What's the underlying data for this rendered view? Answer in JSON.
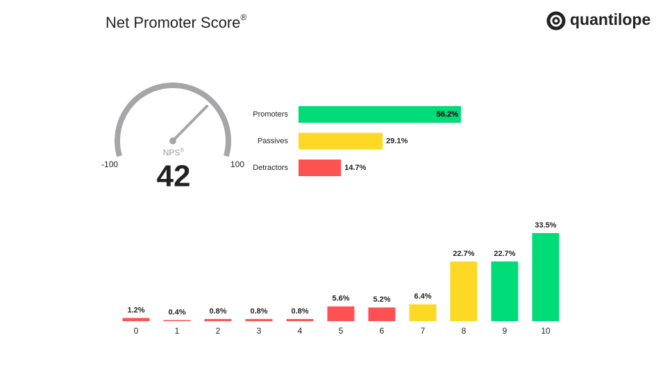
{
  "header": {
    "title": "Net Promoter Score",
    "title_mark": "®",
    "brand": "quantilope"
  },
  "chart_data": [
    {
      "type": "gauge",
      "label": "NPS",
      "label_mark": "®",
      "value": 42,
      "ylim": [
        -100,
        100
      ],
      "yticks": [
        -100,
        100
      ],
      "color": "#a6a6a8"
    },
    {
      "type": "hbar",
      "categories": [
        "Promoters",
        "Passives",
        "Detractors"
      ],
      "values": [
        56.2,
        29.1,
        14.7
      ],
      "value_labels": [
        "56.2%",
        "29.1%",
        "14.7%"
      ],
      "colors": [
        "#00dc78",
        "#fdd825",
        "#fe5252"
      ]
    },
    {
      "type": "bar",
      "categories": [
        "0",
        "1",
        "2",
        "3",
        "4",
        "5",
        "6",
        "7",
        "8",
        "9",
        "10"
      ],
      "values": [
        1.2,
        0.4,
        0.8,
        0.8,
        0.8,
        5.6,
        5.2,
        6.4,
        22.7,
        22.7,
        33.5
      ],
      "value_labels": [
        "1.2%",
        "0.4%",
        "0.8%",
        "0.8%",
        "0.8%",
        "5.6%",
        "5.2%",
        "6.4%",
        "22.7%",
        "22.7%",
        "33.5%"
      ],
      "colors": [
        "#fe5252",
        "#fe5252",
        "#fe5252",
        "#fe5252",
        "#fe5252",
        "#fe5252",
        "#fe5252",
        "#fdd825",
        "#fdd825",
        "#00dc78",
        "#00dc78"
      ]
    }
  ]
}
